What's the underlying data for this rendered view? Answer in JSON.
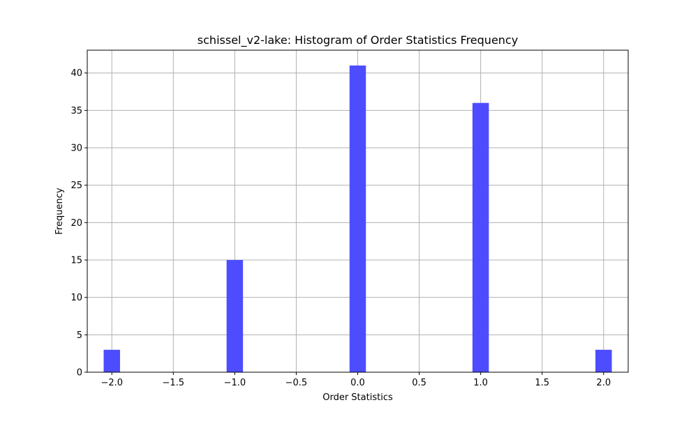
{
  "chart_data": {
    "type": "bar",
    "title": "schissel_v2-lake: Histogram of Order Statistics Frequency",
    "xlabel": "Order Statistics",
    "ylabel": "Frequency",
    "xlim": [
      -2.2,
      2.2
    ],
    "ylim": [
      0,
      43.05
    ],
    "bin_width": 0.1333,
    "bars": [
      {
        "x": -2.0,
        "value": 3
      },
      {
        "x": -1.0,
        "value": 15
      },
      {
        "x": 0.0,
        "value": 41
      },
      {
        "x": 1.0,
        "value": 36
      },
      {
        "x": 2.0,
        "value": 3
      }
    ],
    "x_ticks": [
      {
        "value": -2.0,
        "label": "−2.0"
      },
      {
        "value": -1.5,
        "label": "−1.5"
      },
      {
        "value": -1.0,
        "label": "−1.0"
      },
      {
        "value": -0.5,
        "label": "−0.5"
      },
      {
        "value": 0.0,
        "label": "0.0"
      },
      {
        "value": 0.5,
        "label": "0.5"
      },
      {
        "value": 1.0,
        "label": "1.0"
      },
      {
        "value": 1.5,
        "label": "1.5"
      },
      {
        "value": 2.0,
        "label": "2.0"
      }
    ],
    "y_ticks": [
      {
        "value": 0,
        "label": "0"
      },
      {
        "value": 5,
        "label": "5"
      },
      {
        "value": 10,
        "label": "10"
      },
      {
        "value": 15,
        "label": "15"
      },
      {
        "value": 20,
        "label": "20"
      },
      {
        "value": 25,
        "label": "25"
      },
      {
        "value": 30,
        "label": "30"
      },
      {
        "value": 35,
        "label": "35"
      },
      {
        "value": 40,
        "label": "40"
      }
    ],
    "grid": true,
    "bar_color": "#4d4dff",
    "grid_color": "#b0b0b0"
  }
}
